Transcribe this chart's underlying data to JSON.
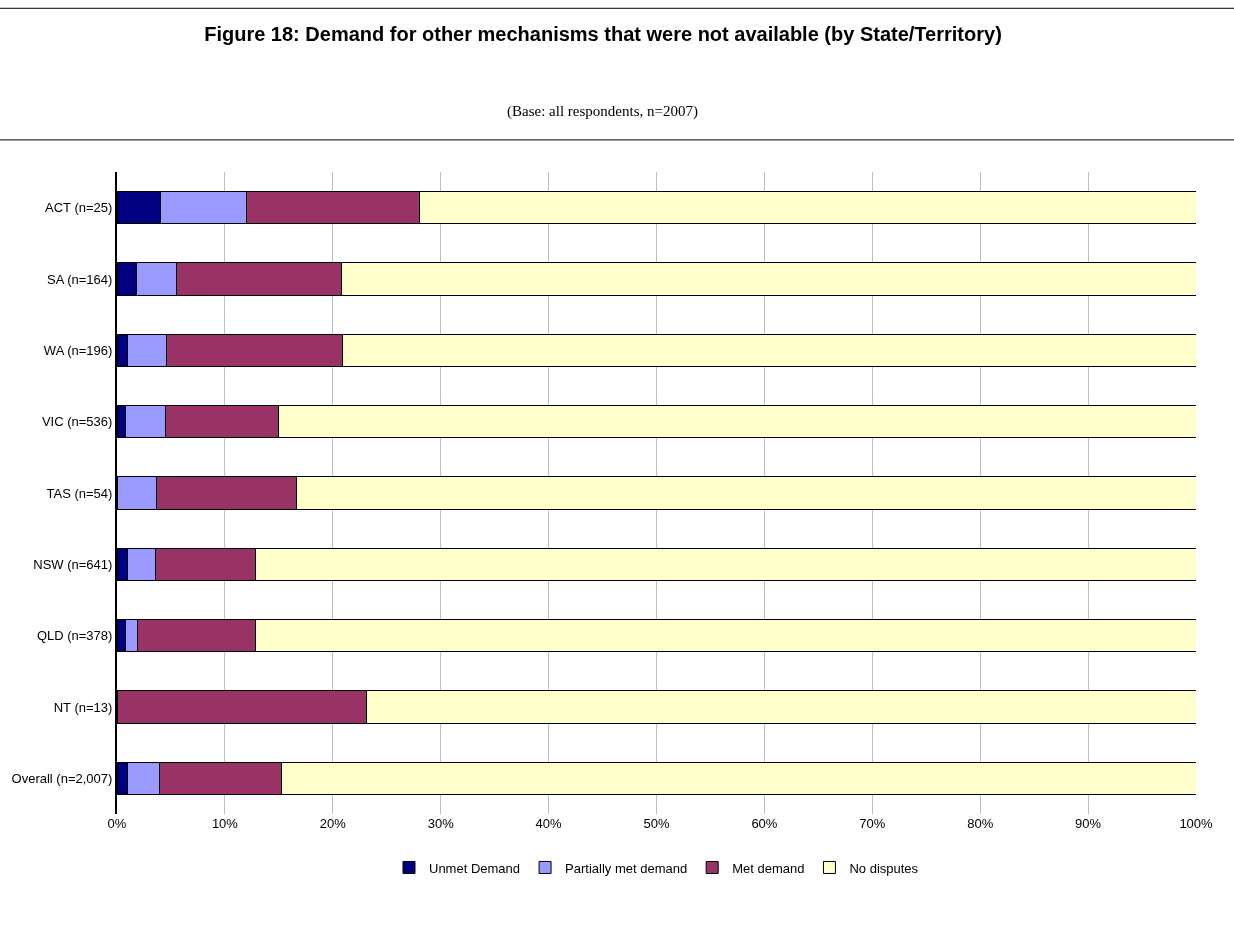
{
  "chart_data": {
    "type": "bar",
    "orientation": "horizontal",
    "stacked": true,
    "title": "Figure 18: Demand for other mechanisms that were not available (by State/Territory)",
    "subtitle": "(Base: all respondents, n=2007)",
    "categories": [
      "ACT (n=25)",
      "SA (n=164)",
      "WA (n=196)",
      "VIC (n=536)",
      "TAS (n=54)",
      "NSW (n=641)",
      "QLD (n=378)",
      "NT (n=13)",
      "Overall (n=2,007)"
    ],
    "series": [
      {
        "name": "Unmet Demand",
        "color": "#000080",
        "values": [
          4.0,
          1.8,
          1.0,
          0.8,
          0,
          1.0,
          0.8,
          0,
          1.0
        ]
      },
      {
        "name": "Partially met demand",
        "color": "#9999ff",
        "values": [
          8.0,
          3.7,
          3.6,
          3.7,
          3.7,
          2.6,
          1.1,
          0,
          2.9
        ]
      },
      {
        "name": "Met demand",
        "color": "#993366",
        "values": [
          16.0,
          15.3,
          16.3,
          10.5,
          12.9,
          9.2,
          10.9,
          23.1,
          11.3
        ]
      },
      {
        "name": "No disputes",
        "color": "#ffffcc",
        "values": [
          72.0,
          79.2,
          79.1,
          85.0,
          83.4,
          87.2,
          87.2,
          76.9,
          84.8
        ]
      }
    ],
    "xlim": [
      0,
      100
    ],
    "xticks": [
      {
        "value": 0,
        "label": "0%"
      },
      {
        "value": 10,
        "label": "10%"
      },
      {
        "value": 20,
        "label": "20%"
      },
      {
        "value": 30,
        "label": "30%"
      },
      {
        "value": 40,
        "label": "40%"
      },
      {
        "value": 50,
        "label": "50%"
      },
      {
        "value": 60,
        "label": "60%"
      },
      {
        "value": 70,
        "label": "70%"
      },
      {
        "value": 80,
        "label": "80%"
      },
      {
        "value": 90,
        "label": "90%"
      },
      {
        "value": 100,
        "label": "100%"
      }
    ],
    "grid": "x",
    "legend": "bottom"
  }
}
